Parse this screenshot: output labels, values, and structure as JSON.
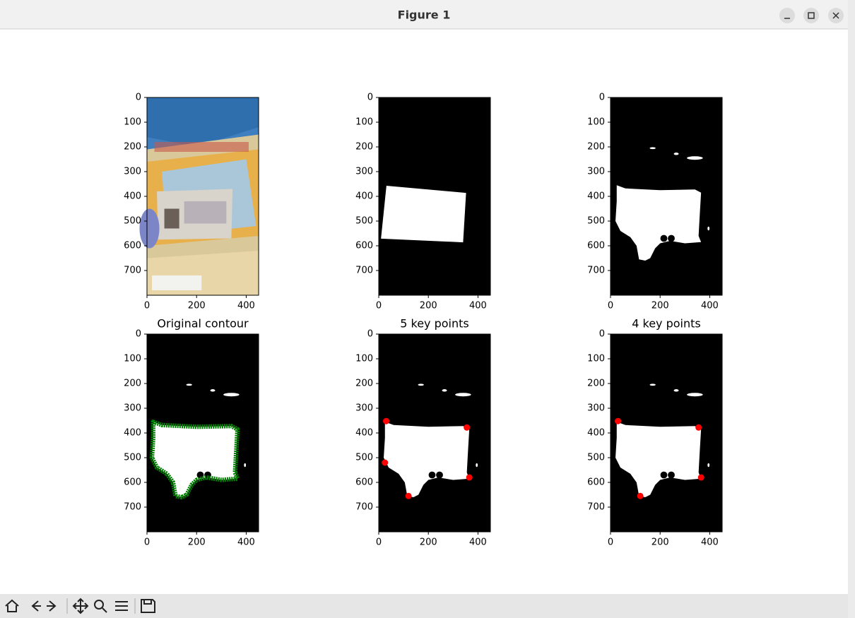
{
  "window": {
    "title": "Figure 1"
  },
  "chart_data": [
    {
      "type": "image",
      "xlim": [
        0,
        450
      ],
      "ylim": [
        800,
        0
      ],
      "xticks": [
        0,
        200,
        400
      ],
      "yticks": [
        0,
        100,
        200,
        300,
        400,
        500,
        600,
        700
      ]
    },
    {
      "type": "image",
      "xlim": [
        0,
        450
      ],
      "ylim": [
        800,
        0
      ],
      "xticks": [
        0,
        200,
        400
      ],
      "yticks": [
        0,
        100,
        200,
        300,
        400,
        500,
        600,
        700
      ]
    },
    {
      "type": "image",
      "xlim": [
        0,
        450
      ],
      "ylim": [
        800,
        0
      ],
      "xticks": [
        0,
        200,
        400
      ],
      "yticks": [
        0,
        100,
        200,
        300,
        400,
        500,
        600,
        700
      ]
    },
    {
      "type": "image",
      "title": "Original contour",
      "xlim": [
        0,
        450
      ],
      "ylim": [
        800,
        0
      ],
      "xticks": [
        0,
        200,
        400
      ],
      "yticks": [
        0,
        100,
        200,
        300,
        400,
        500,
        600,
        700
      ]
    },
    {
      "type": "scatter",
      "title": "5 key points",
      "xlim": [
        0,
        450
      ],
      "ylim": [
        800,
        0
      ],
      "xticks": [
        0,
        200,
        400
      ],
      "yticks": [
        0,
        100,
        200,
        300,
        400,
        500,
        600,
        700
      ],
      "color": "#ff0000",
      "x": [
        30,
        25,
        120,
        355,
        365
      ],
      "y": [
        352,
        520,
        655,
        378,
        580
      ]
    },
    {
      "type": "scatter",
      "title": "4 key points",
      "xlim": [
        0,
        450
      ],
      "ylim": [
        800,
        0
      ],
      "xticks": [
        0,
        200,
        400
      ],
      "yticks": [
        0,
        100,
        200,
        300,
        400,
        500,
        600,
        700
      ],
      "color": "#ff0000",
      "x": [
        30,
        120,
        355,
        365
      ],
      "y": [
        352,
        655,
        378,
        580
      ]
    }
  ]
}
